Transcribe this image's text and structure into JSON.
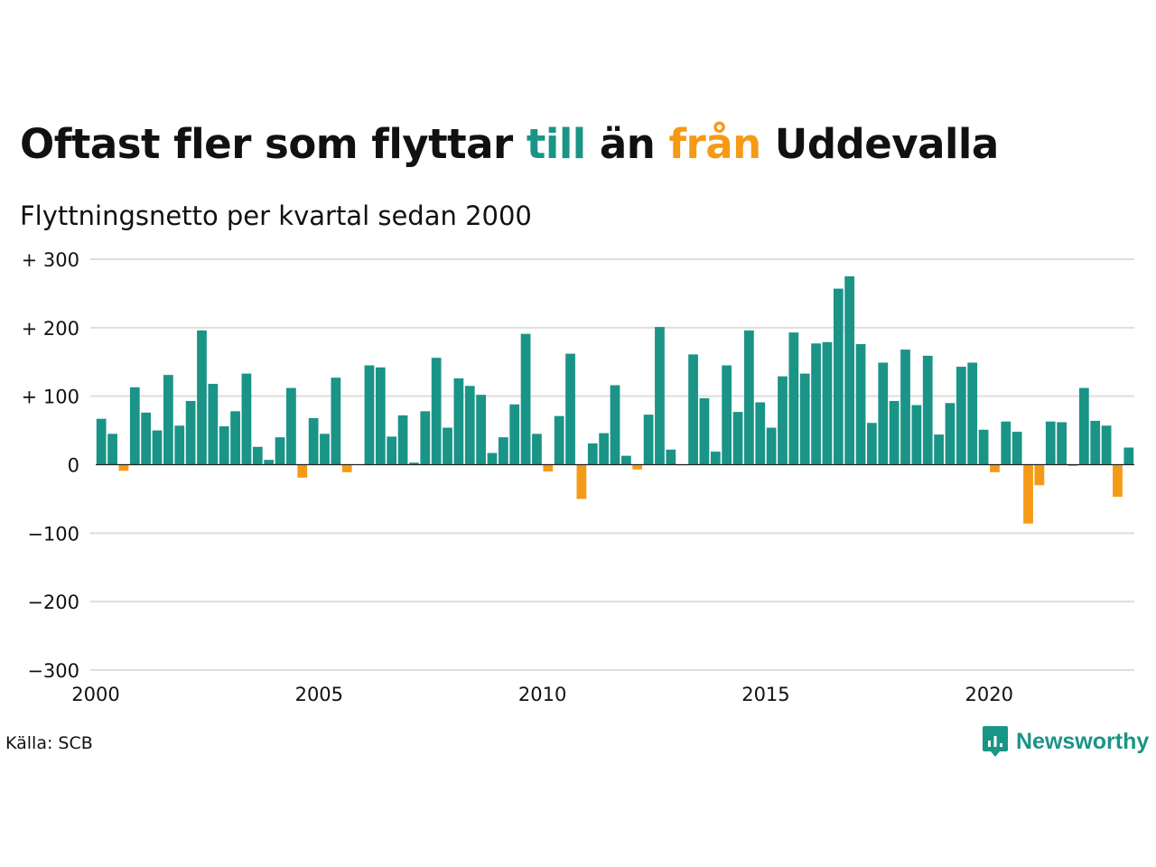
{
  "title": {
    "part1": "Oftast fler som flyttar ",
    "till": "till",
    "part2": " än ",
    "fran": "från",
    "part3": " Uddevalla"
  },
  "subtitle": "Flyttningsnetto per kvartal sedan 2000",
  "source": "Källa: SCB",
  "brand": {
    "name": "Newsworthy",
    "icon": "newsworthy-logo-icon"
  },
  "colors": {
    "positive": "#1a9487",
    "negative": "#f59a16",
    "grid": "#dedede",
    "zero_line": "#222222"
  },
  "chart_data": {
    "type": "bar",
    "title": "Oftast fler som flyttar till än från Uddevalla",
    "subtitle": "Flyttningsnetto per kvartal sedan 2000",
    "ylim": [
      -300,
      300
    ],
    "y_ticks": [
      300,
      200,
      100,
      0,
      -100,
      -200,
      -300
    ],
    "y_tick_labels": [
      "+ 300",
      "+ 200",
      "+ 100",
      "0",
      "−100",
      "−200",
      "−300"
    ],
    "x_ticks": [
      "2000",
      "2005",
      "2010",
      "2015",
      "2020"
    ],
    "grid": true,
    "start": "2000 Q1",
    "frequency": "quarter",
    "values": [
      67,
      45,
      -9,
      113,
      76,
      50,
      131,
      57,
      93,
      196,
      118,
      56,
      78,
      133,
      26,
      7,
      40,
      112,
      -19,
      68,
      45,
      127,
      -11,
      0,
      145,
      142,
      41,
      72,
      3,
      78,
      156,
      54,
      126,
      115,
      102,
      17,
      40,
      88,
      191,
      45,
      -10,
      71,
      162,
      -50,
      31,
      46,
      116,
      13,
      -7,
      73,
      201,
      22,
      -1,
      161,
      97,
      19,
      145,
      77,
      196,
      91,
      54,
      129,
      193,
      133,
      177,
      179,
      257,
      275,
      176,
      61,
      149,
      93,
      168,
      87,
      159,
      44,
      90,
      143,
      149,
      51,
      -11,
      63,
      48,
      -86,
      -30,
      63,
      62,
      -2,
      112,
      64,
      57,
      -47,
      25
    ]
  }
}
